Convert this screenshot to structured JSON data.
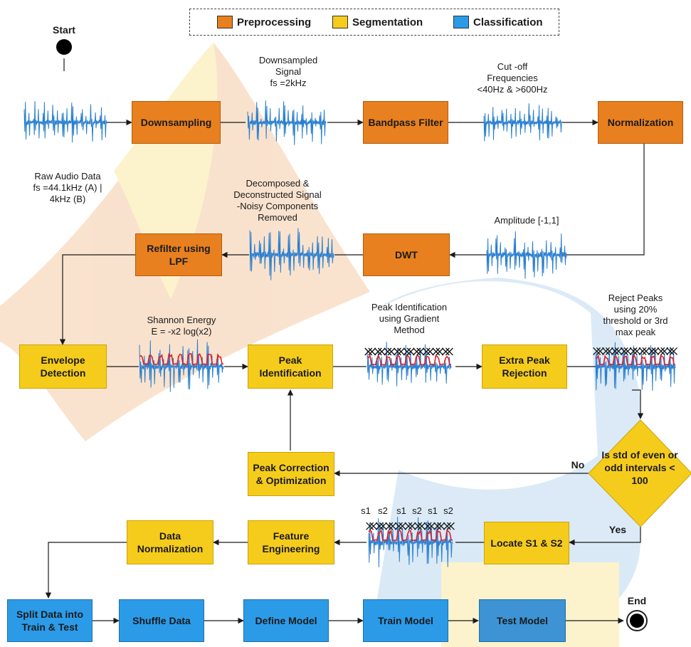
{
  "legend": {
    "preprocessing": "Preprocessing",
    "segmentation": "Segmentation",
    "classification": "Classification"
  },
  "terminals": {
    "start": "Start",
    "end": "End"
  },
  "steps": {
    "downsampling": "Downsampling",
    "bandpass": "Bandpass Filter",
    "normalization": "Normalization",
    "dwt": "DWT",
    "refilter": "Refilter using LPF",
    "envelope": "Envelope Detection",
    "peak_identification": "Peak Identification",
    "extra_peak_rejection": "Extra Peak Rejection",
    "peak_correction": "Peak Correction & Optimization",
    "locate_s1s2": "Locate S1 & S2",
    "feature_engineering": "Feature Engineering",
    "data_normalization": "Data Normalization",
    "split_data": "Split Data into Train & Test",
    "shuffle": "Shuffle Data",
    "define_model": "Define Model",
    "train_model": "Train Model",
    "test_model": "Test Model"
  },
  "decision": {
    "text": "Is std of even or odd intervals < 100",
    "no": "No",
    "yes": "Yes"
  },
  "annotations": {
    "raw_line1": "Raw Audio Data",
    "raw_fs": "fs =44.1kHz (A) |",
    "raw_line3": "4kHz (B)",
    "down_line1": "Downsampled",
    "down_line2": "Signal",
    "down_fs": "fs =2kHz",
    "cutoff_line1": "Cut -off",
    "cutoff_line2": "Frequencies",
    "cutoff_line3": "<40Hz & >600Hz",
    "amplitude": "Amplitude [-1,1]",
    "decomp_line1": "Decomposed &",
    "decomp_line2": "Deconstructed Signal",
    "decomp_line3": "-Noisy Components",
    "decomp_line4": "Removed",
    "shannon_line1": "Shannon Energy",
    "shannon_formula": "E = -x2 log(x2)",
    "peakid_line1": "Peak Identification",
    "peakid_line2": "using Gradient",
    "peakid_line3": "Method",
    "reject_line1": "Reject Peaks",
    "reject_line2": "using 20%",
    "reject_line3": "threshold or 3rd",
    "reject_line4": "max peak"
  },
  "s_labels": [
    "s1",
    "s2",
    "s1",
    "s2",
    "s1",
    "s2"
  ],
  "colors": {
    "preprocessing": "#e8801f",
    "segmentation": "#f6cc1c",
    "classification": "#2b9be8",
    "waveform": "#2a7fd0",
    "envelope": "#e0202a"
  }
}
